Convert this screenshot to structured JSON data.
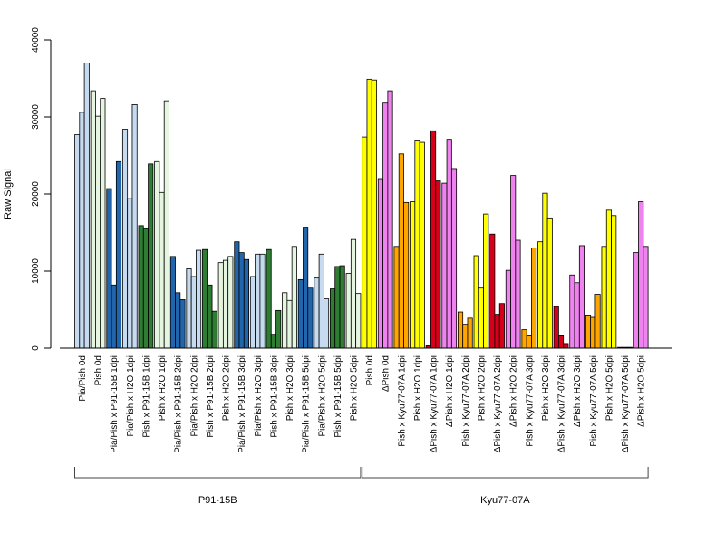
{
  "chart_data": {
    "type": "bar",
    "title": "",
    "xlabel": "",
    "ylabel": "Raw Signal",
    "ylim": [
      0,
      40000
    ],
    "yticks": [
      0,
      10000,
      20000,
      30000,
      40000
    ],
    "grid": false,
    "legend": "none",
    "bars_per_category": 3,
    "categories": [
      {
        "label": "Pia/Pish 0d",
        "color": "#C6DBEF",
        "values": [
          27700,
          30600,
          37000
        ]
      },
      {
        "label": "Pish 0d",
        "color": "#E5F5E0",
        "values": [
          33400,
          30100,
          32400
        ]
      },
      {
        "label": "Pia/Pish x P91-15B 1dpi",
        "color": "#2166AC",
        "values": [
          20700,
          8200,
          24200
        ]
      },
      {
        "label": "Pia/Pish x H2O 1dpi",
        "color": "#C6DBEF",
        "values": [
          28400,
          19400,
          31600
        ]
      },
      {
        "label": "Pish x P91-15B 1dpi",
        "color": "#2E7D32",
        "values": [
          15900,
          15500,
          23900
        ]
      },
      {
        "label": "Pish x H2O 1dpi",
        "color": "#E5F5E0",
        "values": [
          24200,
          20200,
          32100
        ]
      },
      {
        "label": "Pia/Pish x P91-15B 2dpi",
        "color": "#2166AC",
        "values": [
          11900,
          7200,
          6300
        ]
      },
      {
        "label": "Pia/Pish x H2O 2dpi",
        "color": "#C6DBEF",
        "values": [
          10300,
          9300,
          12700
        ]
      },
      {
        "label": "Pish x P91-15B 2dpi",
        "color": "#2E7D32",
        "values": [
          12800,
          8200,
          4800
        ]
      },
      {
        "label": "Pish x H2O 2dpi",
        "color": "#E5F5E0",
        "values": [
          11100,
          11400,
          11900
        ]
      },
      {
        "label": "Pia/Pish x P91-15B 3dpi",
        "color": "#2166AC",
        "values": [
          13800,
          12400,
          11500
        ]
      },
      {
        "label": "Pia/Pish x H2O 3dpi",
        "color": "#C6DBEF",
        "values": [
          9300,
          12200,
          12200
        ]
      },
      {
        "label": "Pish x P91-15B 3dpi",
        "color": "#2E7D32",
        "values": [
          12800,
          1800,
          4900
        ]
      },
      {
        "label": "Pish x H2O 3dpi",
        "color": "#E5F5E0",
        "values": [
          7200,
          6200,
          13200
        ]
      },
      {
        "label": "Pia/Pish x P91-15B 5dpi",
        "color": "#2166AC",
        "values": [
          8900,
          15700,
          7800
        ]
      },
      {
        "label": "Pia/Pish x H2O 5dpi",
        "color": "#C6DBEF",
        "values": [
          9100,
          12200,
          6400
        ]
      },
      {
        "label": "Pish x P91-15B 5dpi",
        "color": "#2E7D32",
        "values": [
          7700,
          10600,
          10700
        ]
      },
      {
        "label": "Pish x H2O 5dpi",
        "color": "#E5F5E0",
        "values": [
          9700,
          14100,
          7100
        ]
      },
      {
        "label": "Pish 0d",
        "color": "#FFFF00",
        "values": [
          27400,
          34900,
          34800
        ]
      },
      {
        "label": "ΔPish 0d",
        "color": "#EE82EE",
        "values": [
          22000,
          31800,
          33400
        ]
      },
      {
        "label": "Pish x Kyu77-07A 1dpi",
        "color": "#FFA500",
        "values": [
          13200,
          25200,
          18900
        ]
      },
      {
        "label": "Pish x H2O 1dpi",
        "color": "#FFFF00",
        "values": [
          19000,
          27000,
          26700
        ]
      },
      {
        "label": "ΔPish x Kyu77-07A 1dpi",
        "color": "#D7001A",
        "values": [
          300,
          28200,
          21700
        ]
      },
      {
        "label": "ΔPish x H2O 1dpi",
        "color": "#EE82EE",
        "values": [
          21400,
          27100,
          23300
        ]
      },
      {
        "label": "Pish x Kyu77-07A 2dpi",
        "color": "#FFA500",
        "values": [
          4700,
          3100,
          3900
        ]
      },
      {
        "label": "Pish x H2O 2dpi",
        "color": "#FFFF00",
        "values": [
          12000,
          7800,
          17400
        ]
      },
      {
        "label": "ΔPish x Kyu77-07A 2dpi",
        "color": "#D7001A",
        "values": [
          14800,
          4400,
          5800
        ]
      },
      {
        "label": "ΔPish x H2O 2dpi",
        "color": "#EE82EE",
        "values": [
          10100,
          22400,
          14000
        ]
      },
      {
        "label": "Pish x Kyu77-07A 3dpi",
        "color": "#FFA500",
        "values": [
          2400,
          1600,
          13000
        ]
      },
      {
        "label": "Pish x H2O 3dpi",
        "color": "#FFFF00",
        "values": [
          13800,
          20100,
          16900
        ]
      },
      {
        "label": "ΔPish x Kyu77-07A 3dpi",
        "color": "#D7001A",
        "values": [
          5400,
          1600,
          600
        ]
      },
      {
        "label": "ΔPish x H2O 3dpi",
        "color": "#EE82EE",
        "values": [
          9500,
          8500,
          13300
        ]
      },
      {
        "label": "Pish x Kyu77-07A 5dpi",
        "color": "#FFA500",
        "values": [
          4300,
          4000,
          7000
        ]
      },
      {
        "label": "Pish x H2O 5dpi",
        "color": "#FFFF00",
        "values": [
          13200,
          17900,
          17200
        ]
      },
      {
        "label": "ΔPish x Kyu77-07A 5dpi",
        "color": "#D7001A",
        "values": [
          100,
          100,
          100
        ]
      },
      {
        "label": "ΔPish x H2O 5dpi",
        "color": "#EE82EE",
        "values": [
          12400,
          19000,
          13200
        ]
      }
    ],
    "groups": [
      {
        "label": "P91-15B",
        "first": 0,
        "last": 17
      },
      {
        "label": "Kyu77-07A",
        "first": 18,
        "last": 35
      }
    ]
  }
}
